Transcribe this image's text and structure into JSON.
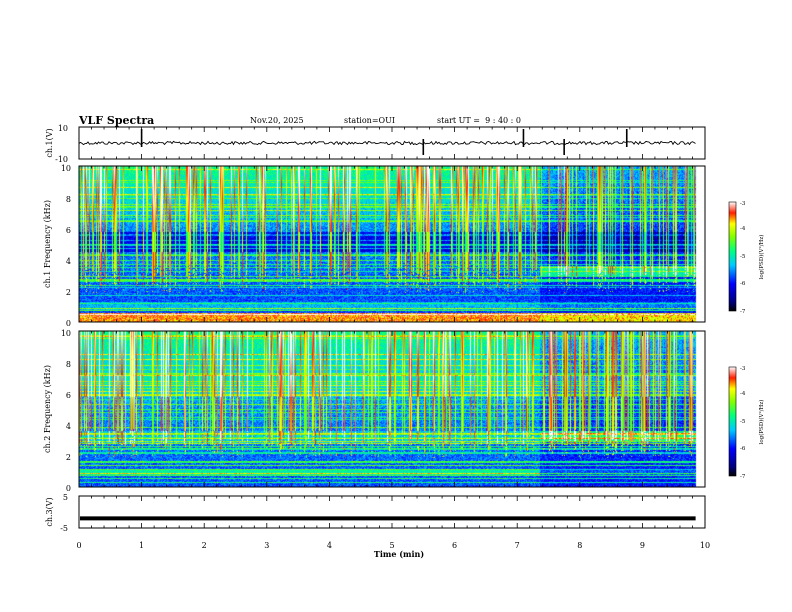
{
  "header": {
    "title": "VLF Spectra",
    "date": "Nov.20, 2025",
    "station": "station=OUI",
    "start": "start UT =  9 : 40 : 0"
  },
  "chart_data": [
    {
      "type": "line",
      "name": "ch1-waveform",
      "ylabel": "ch.1(V)",
      "ylim": [
        -10,
        10
      ],
      "yticks": [
        "10",
        "-10"
      ],
      "baseline": 0,
      "spikes_min": [
        1.0,
        5.5,
        7.1,
        7.75,
        8.75
      ]
    },
    {
      "type": "heatmap",
      "name": "ch1-spectrogram",
      "ylabel": "ch.1 Frequency (kHz)",
      "ylim": [
        0,
        10
      ],
      "yticks": [
        "0",
        "2",
        "4",
        "6",
        "8",
        "10"
      ],
      "colorbar": {
        "label": "log(PSD)(V²/Hz)",
        "range": [
          -7,
          -3
        ],
        "ticks": [
          "-3",
          "-4",
          "-5",
          "-6",
          "-7"
        ]
      },
      "quiet_after_min": 7.35
    },
    {
      "type": "heatmap",
      "name": "ch2-spectrogram",
      "ylabel": "ch.2 Frequency (kHz)",
      "ylim": [
        0,
        10
      ],
      "yticks": [
        "0",
        "2",
        "4",
        "6",
        "8",
        "10"
      ],
      "colorbar": {
        "label": "log(PSD)(V²/Hz)",
        "range": [
          -7,
          -3
        ],
        "ticks": [
          "-3",
          "-4",
          "-5",
          "-6",
          "-7"
        ]
      },
      "quiet_after_min": 7.35
    },
    {
      "type": "line",
      "name": "ch3-waveform",
      "ylabel": "ch.3(V)",
      "ylim": [
        -5,
        5
      ],
      "yticks": [
        "5",
        "-5"
      ],
      "baseline": -2
    }
  ],
  "xaxis": {
    "label": "Time (min)",
    "range": [
      0,
      10
    ],
    "ticks": [
      "0",
      "1",
      "2",
      "3",
      "4",
      "5",
      "6",
      "7",
      "8",
      "9",
      "10"
    ],
    "data_end_min": 9.85
  }
}
